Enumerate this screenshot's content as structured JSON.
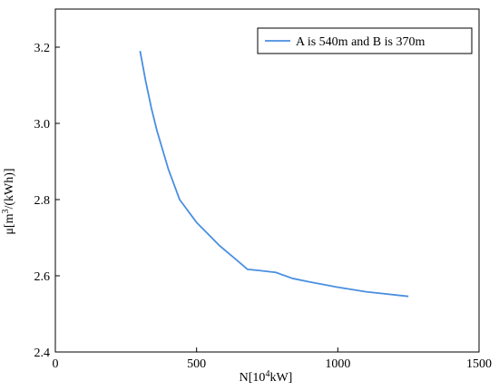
{
  "chart_data": {
    "type": "line",
    "xlabel": "N[10⁴kW]",
    "ylabel": "μ[m³/(kWh)]",
    "xlim": [
      0,
      1500
    ],
    "ylim": [
      2.4,
      3.3
    ],
    "xticks": [
      0,
      500,
      1000,
      1500
    ],
    "yticks": [
      2.4,
      2.6,
      2.8,
      3.0,
      3.2
    ],
    "xtick_labels": [
      "0",
      "500",
      "1000",
      "1500"
    ],
    "ytick_labels": [
      "2.4",
      "2.6",
      "2.8",
      "3.0",
      "3.2"
    ],
    "grid": false,
    "legend_position": "top-right",
    "series": [
      {
        "name": "A is 540m and B is 370m",
        "color": "#4a8fe0",
        "x": [
          300,
          320,
          340,
          360,
          380,
          400,
          420,
          440,
          460,
          480,
          500,
          540,
          580,
          620,
          660,
          680,
          720,
          780,
          840,
          900,
          1000,
          1100,
          1250
        ],
        "y": [
          3.19,
          3.11,
          3.04,
          2.98,
          2.93,
          2.88,
          2.84,
          2.8,
          2.78,
          2.76,
          2.74,
          2.71,
          2.68,
          2.655,
          2.63,
          2.617,
          2.614,
          2.609,
          2.593,
          2.584,
          2.57,
          2.558,
          2.546
        ]
      }
    ]
  }
}
